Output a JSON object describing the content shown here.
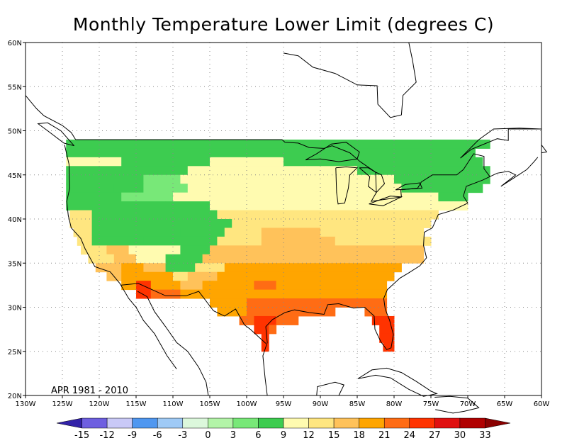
{
  "title": "Monthly Temperature Lower Limit (degrees C)",
  "period": "APR 1981 - 2010",
  "lat_labels": [
    "20N",
    "25N",
    "30N",
    "35N",
    "40N",
    "45N",
    "50N",
    "55N",
    "60N"
  ],
  "lat_values": [
    20,
    25,
    30,
    35,
    40,
    45,
    50,
    55,
    60
  ],
  "lon_labels": [
    "130W",
    "125W",
    "120W",
    "115W",
    "110W",
    "105W",
    "100W",
    "95W",
    "90W",
    "85W",
    "80W",
    "75W",
    "70W",
    "65W",
    "60W"
  ],
  "lon_values": [
    -130,
    -125,
    -120,
    -115,
    -110,
    -105,
    -100,
    -95,
    -90,
    -85,
    -80,
    -75,
    -70,
    -65,
    -60
  ],
  "extent": {
    "lon_min": -130,
    "lon_max": -60,
    "lat_min": 20,
    "lat_max": 60
  },
  "colorbar": {
    "labels": [
      "-15",
      "-12",
      "-9",
      "-6",
      "-3",
      "0",
      "3",
      "6",
      "9",
      "12",
      "15",
      "18",
      "21",
      "24",
      "27",
      "30",
      "33"
    ],
    "colors": [
      "#3222a8",
      "#6e5fe0",
      "#c9c9f7",
      "#4f97f0",
      "#9fcaf6",
      "#dcf8dc",
      "#b3f4a8",
      "#78e878",
      "#3dcc50",
      "#fffbb0",
      "#ffe680",
      "#ffc25a",
      "#ffa500",
      "#ff6c14",
      "#ff3300",
      "#e01010",
      "#b00000",
      "#8a0000"
    ]
  },
  "grid_bands": [
    {
      "lat": [
        48,
        49
      ],
      "segments": [
        [
          -124.5,
          -67,
          6
        ]
      ]
    },
    {
      "lat": [
        47,
        48
      ],
      "segments": [
        [
          -124.5,
          -115,
          6
        ],
        [
          -115,
          -105,
          6
        ],
        [
          -105,
          -90,
          6
        ],
        [
          -90,
          -85,
          6
        ],
        [
          -85,
          -69,
          6
        ]
      ]
    },
    {
      "lat": [
        46,
        47
      ],
      "segments": [
        [
          -124.5,
          -117,
          9
        ],
        [
          -117,
          -105,
          6
        ],
        [
          -105,
          -95,
          9
        ],
        [
          -95,
          -85,
          6
        ],
        [
          -85,
          -68,
          6
        ]
      ]
    },
    {
      "lat": [
        45,
        46
      ],
      "segments": [
        [
          -124.5,
          -117,
          6
        ],
        [
          -117,
          -108,
          6
        ],
        [
          -108,
          -92,
          9
        ],
        [
          -92,
          -85,
          9
        ],
        [
          -85,
          -67,
          6
        ]
      ]
    },
    {
      "lat": [
        44,
        45
      ],
      "segments": [
        [
          -124.5,
          -114,
          6
        ],
        [
          -114,
          -109,
          3
        ],
        [
          -109,
          -96,
          9
        ],
        [
          -96,
          -80,
          9
        ],
        [
          -80,
          -67,
          6
        ]
      ]
    },
    {
      "lat": [
        43,
        44
      ],
      "segments": [
        [
          -124.5,
          -118,
          6
        ],
        [
          -118,
          -114,
          6
        ],
        [
          -114,
          -108,
          3
        ],
        [
          -108,
          -96,
          9
        ],
        [
          -96,
          -79,
          9
        ],
        [
          -79,
          -68,
          6
        ]
      ]
    },
    {
      "lat": [
        42,
        43
      ],
      "segments": [
        [
          -124.5,
          -117,
          6
        ],
        [
          -117,
          -110,
          3
        ],
        [
          -110,
          -96,
          9
        ],
        [
          -96,
          -83,
          9
        ],
        [
          -83,
          -74,
          9
        ],
        [
          -74,
          -70,
          6
        ]
      ]
    },
    {
      "lat": [
        41,
        42
      ],
      "segments": [
        [
          -124.5,
          -120,
          6
        ],
        [
          -120,
          -111,
          6
        ],
        [
          -111,
          -105,
          6
        ],
        [
          -105,
          -95,
          9
        ],
        [
          -95,
          -72,
          9
        ],
        [
          -72,
          -70,
          9
        ]
      ]
    },
    {
      "lat": [
        40,
        41
      ],
      "segments": [
        [
          -124,
          -121,
          12
        ],
        [
          -121,
          -111,
          6
        ],
        [
          -111,
          -104,
          6
        ],
        [
          -104,
          -95,
          12
        ],
        [
          -95,
          -74,
          12
        ]
      ]
    },
    {
      "lat": [
        39,
        40
      ],
      "segments": [
        [
          -124,
          -121,
          12
        ],
        [
          -121,
          -116,
          6
        ],
        [
          -116,
          -110,
          6
        ],
        [
          -110,
          -102,
          6
        ],
        [
          -102,
          -94,
          12
        ],
        [
          -94,
          -75,
          12
        ]
      ]
    },
    {
      "lat": [
        38,
        39
      ],
      "segments": [
        [
          -123.5,
          -121,
          12
        ],
        [
          -121,
          -115,
          6
        ],
        [
          -115,
          -109,
          6
        ],
        [
          -109,
          -103,
          6
        ],
        [
          -103,
          -98,
          12
        ],
        [
          -98,
          -90,
          15
        ],
        [
          -90,
          -76,
          12
        ]
      ]
    },
    {
      "lat": [
        37,
        38
      ],
      "segments": [
        [
          -123,
          -121,
          12
        ],
        [
          -121,
          -114,
          6
        ],
        [
          -114,
          -104,
          6
        ],
        [
          -104,
          -98,
          12
        ],
        [
          -98,
          -88,
          15
        ],
        [
          -88,
          -75,
          12
        ]
      ]
    },
    {
      "lat": [
        36,
        37
      ],
      "segments": [
        [
          -122.5,
          -119,
          12
        ],
        [
          -119,
          -116,
          15
        ],
        [
          -116,
          -109,
          9
        ],
        [
          -109,
          -105,
          6
        ],
        [
          -105,
          -98,
          15
        ],
        [
          -98,
          -88,
          15
        ],
        [
          -88,
          -76,
          15
        ]
      ]
    },
    {
      "lat": [
        35,
        36
      ],
      "segments": [
        [
          -121.5,
          -118,
          12
        ],
        [
          -118,
          -115,
          15
        ],
        [
          -115,
          -111,
          9
        ],
        [
          -111,
          -106,
          6
        ],
        [
          -106,
          -100,
          15
        ],
        [
          -100,
          -86,
          15
        ],
        [
          -86,
          -76,
          15
        ]
      ]
    },
    {
      "lat": [
        34,
        35
      ],
      "segments": [
        [
          -120.5,
          -117,
          15
        ],
        [
          -117,
          -114,
          18
        ],
        [
          -114,
          -111,
          15
        ],
        [
          -111,
          -107,
          6
        ],
        [
          -107,
          -103,
          12
        ],
        [
          -103,
          -96,
          18
        ],
        [
          -96,
          -79,
          18
        ]
      ]
    },
    {
      "lat": [
        33,
        34
      ],
      "segments": [
        [
          -119,
          -117,
          15
        ],
        [
          -117,
          -114,
          18
        ],
        [
          -114,
          -110,
          18
        ],
        [
          -110,
          -108,
          12
        ],
        [
          -108,
          -104,
          15
        ],
        [
          -104,
          -96,
          18
        ],
        [
          -96,
          -80,
          18
        ]
      ]
    },
    {
      "lat": [
        32,
        33
      ],
      "segments": [
        [
          -117,
          -115,
          18
        ],
        [
          -115,
          -113,
          24
        ],
        [
          -113,
          -109,
          18
        ],
        [
          -109,
          -106,
          15
        ],
        [
          -106,
          -99,
          18
        ],
        [
          -99,
          -96,
          21
        ],
        [
          -96,
          -81,
          18
        ]
      ]
    },
    {
      "lat": [
        31,
        32
      ],
      "segments": [
        [
          -115,
          -113,
          24
        ],
        [
          -113,
          -109,
          21
        ],
        [
          -109,
          -105,
          18
        ],
        [
          -105,
          -100,
          18
        ],
        [
          -100,
          -95,
          18
        ],
        [
          -95,
          -81,
          18
        ]
      ]
    },
    {
      "lat": [
        30,
        31
      ],
      "segments": [
        [
          -105,
          -100,
          18
        ],
        [
          -100,
          -96,
          21
        ],
        [
          -96,
          -81,
          21
        ]
      ]
    },
    {
      "lat": [
        29,
        30
      ],
      "segments": [
        [
          -104,
          -100,
          18
        ],
        [
          -100,
          -94,
          21
        ],
        [
          -94,
          -88,
          21
        ],
        [
          -84,
          -81,
          21
        ]
      ]
    },
    {
      "lat": [
        28,
        29
      ],
      "segments": [
        [
          -101,
          -99,
          21
        ],
        [
          -99,
          -96,
          24
        ],
        [
          -96,
          -93,
          21
        ],
        [
          -83,
          -80,
          24
        ]
      ]
    },
    {
      "lat": [
        27,
        28
      ],
      "segments": [
        [
          -99,
          -97,
          24
        ],
        [
          -97,
          -96,
          21
        ],
        [
          -82,
          -80,
          24
        ]
      ]
    },
    {
      "lat": [
        26,
        27
      ],
      "segments": [
        [
          -98,
          -97,
          24
        ],
        [
          -82,
          -80,
          24
        ]
      ]
    },
    {
      "lat": [
        25,
        26
      ],
      "segments": [
        [
          -98,
          -97,
          24
        ],
        [
          -81.5,
          -80,
          24
        ]
      ]
    }
  ]
}
